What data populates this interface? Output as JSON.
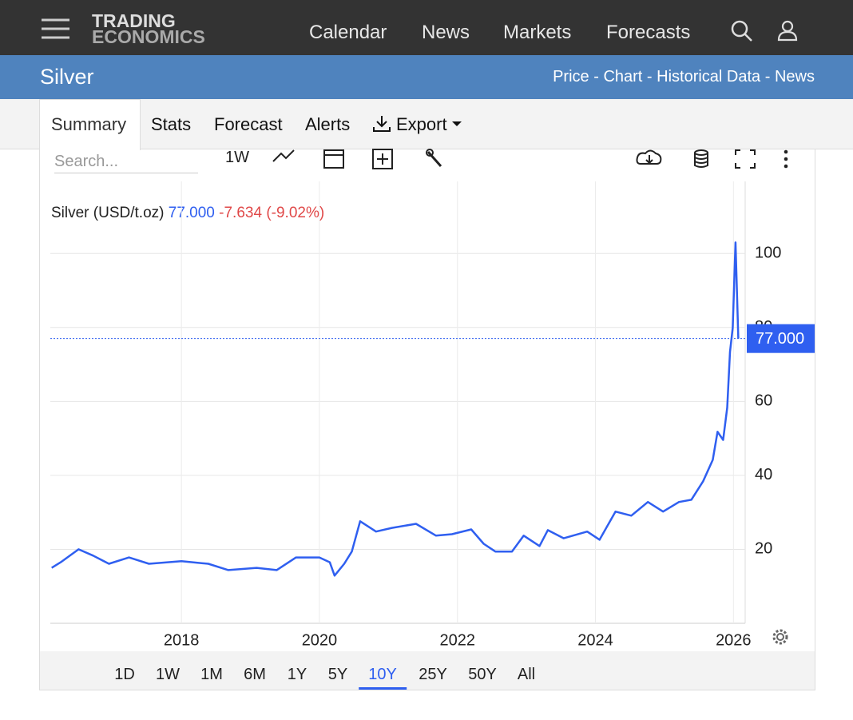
{
  "brand": {
    "line1": "TRADING",
    "line2": "ECONOMICS"
  },
  "nav": [
    "Calendar",
    "News",
    "Markets",
    "Forecasts"
  ],
  "page_title": "Silver",
  "subnav": {
    "links": [
      "Price",
      "Chart",
      "Historical Data",
      "News"
    ],
    "separator": "-"
  },
  "tabs": [
    "Summary",
    "Stats",
    "Forecast",
    "Alerts",
    "Export"
  ],
  "search_placeholder": "Search...",
  "toolbar_interval": "1W",
  "quote": {
    "name": "Silver (USD/t.oz)",
    "price": "77.000",
    "change": "-7.634",
    "change_pct": "(-9.02%)"
  },
  "ranges": [
    "1D",
    "1W",
    "1M",
    "6M",
    "1Y",
    "5Y",
    "10Y",
    "25Y",
    "50Y",
    "All"
  ],
  "selected_range": "10Y",
  "chart_data": {
    "type": "line",
    "x": [
      2016.12,
      2016.25,
      2016.51,
      2016.72,
      2016.95,
      2017.24,
      2017.53,
      2018.0,
      2018.39,
      2018.68,
      2019.09,
      2019.38,
      2019.66,
      2020.0,
      2020.15,
      2020.22,
      2020.36,
      2020.47,
      2020.59,
      2020.82,
      2021.05,
      2021.4,
      2021.69,
      2021.92,
      2022.2,
      2022.38,
      2022.55,
      2022.79,
      2022.96,
      2023.19,
      2023.31,
      2023.54,
      2023.88,
      2024.06,
      2024.29,
      2024.52,
      2024.76,
      2024.98,
      2025.21,
      2025.39,
      2025.56,
      2025.7,
      2025.77,
      2025.85,
      2025.91,
      2025.95,
      2025.99,
      2026.03,
      2026.07
    ],
    "series": [
      {
        "name": "Silver",
        "color": "#2f5ff0",
        "values": [
          15.0,
          16.5,
          20.0,
          18.3,
          16.1,
          17.8,
          16.1,
          16.8,
          16.1,
          14.4,
          15.0,
          14.4,
          17.8,
          17.8,
          16.5,
          12.9,
          16.1,
          19.4,
          27.6,
          24.8,
          25.8,
          26.9,
          23.7,
          24.1,
          25.4,
          21.5,
          19.4,
          19.4,
          23.7,
          20.9,
          25.2,
          23.0,
          24.8,
          22.6,
          30.2,
          29.1,
          32.8,
          30.2,
          32.8,
          33.4,
          38.4,
          44.2,
          51.8,
          49.6,
          58.3,
          73.4,
          79.9,
          103.0,
          77.0
        ]
      }
    ],
    "xlim": [
      2016.1,
      2026.17
    ],
    "xticks": [
      2018,
      2020,
      2022,
      2024,
      2026
    ],
    "ylim": [
      0,
      119.5
    ],
    "yticks": [
      20,
      40,
      60,
      80,
      100
    ],
    "grid": true,
    "price_line": {
      "value": 77,
      "label": "77.000"
    }
  }
}
